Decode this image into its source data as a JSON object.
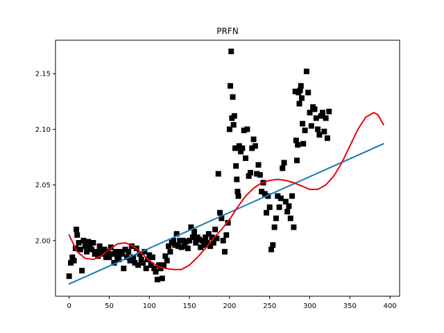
{
  "chart_data": {
    "type": "scatter",
    "title": "PRFN",
    "xlabel": "",
    "ylabel": "",
    "xlim": [
      -17,
      412
    ],
    "ylim": [
      1.95,
      2.18
    ],
    "xticks": [
      0,
      50,
      100,
      150,
      200,
      250,
      300,
      350,
      400
    ],
    "yticks": [
      2.0,
      2.05,
      2.1,
      2.15
    ],
    "xtick_labels": [
      "0",
      "50",
      "100",
      "150",
      "200",
      "250",
      "300",
      "350",
      "400"
    ],
    "ytick_labels": [
      "2.00",
      "2.05",
      "2.10",
      "2.15"
    ],
    "grid": false,
    "legend": "none",
    "series": [
      {
        "kind": "scatter",
        "marker": "square",
        "color": "#000000",
        "points": [
          [
            0,
            1.968
          ],
          [
            2,
            1.98
          ],
          [
            4,
            1.985
          ],
          [
            6,
            1.982
          ],
          [
            8,
            1.993
          ],
          [
            9,
            2.01
          ],
          [
            10,
            2.005
          ],
          [
            12,
            1.998
          ],
          [
            14,
            1.992
          ],
          [
            16,
            1.973
          ],
          [
            18,
            2.0
          ],
          [
            20,
            1.995
          ],
          [
            22,
            1.99
          ],
          [
            24,
            1.999
          ],
          [
            26,
            1.994
          ],
          [
            28,
            1.992
          ],
          [
            30,
            1.998
          ],
          [
            32,
            1.988
          ],
          [
            34,
            1.99
          ],
          [
            36,
            1.986
          ],
          [
            38,
            1.995
          ],
          [
            40,
            1.99
          ],
          [
            42,
            1.988
          ],
          [
            44,
            1.992
          ],
          [
            46,
            1.985
          ],
          [
            48,
            1.99
          ],
          [
            50,
            1.985
          ],
          [
            52,
            1.994
          ],
          [
            54,
            1.988
          ],
          [
            56,
            1.98
          ],
          [
            58,
            1.99
          ],
          [
            60,
            1.985
          ],
          [
            62,
            1.983
          ],
          [
            64,
            1.99
          ],
          [
            66,
            1.988
          ],
          [
            68,
            1.975
          ],
          [
            70,
            1.992
          ],
          [
            72,
            1.985
          ],
          [
            74,
            1.99
          ],
          [
            76,
            1.982
          ],
          [
            78,
            1.995
          ],
          [
            80,
            1.985
          ],
          [
            82,
            1.98
          ],
          [
            84,
            1.993
          ],
          [
            86,
            1.978
          ],
          [
            88,
            1.988
          ],
          [
            90,
            1.983
          ],
          [
            92,
            1.98
          ],
          [
            94,
            1.99
          ],
          [
            96,
            1.975
          ],
          [
            98,
            1.983
          ],
          [
            100,
            1.987
          ],
          [
            102,
            1.978
          ],
          [
            104,
            1.985
          ],
          [
            106,
            1.975
          ],
          [
            108,
            1.972
          ],
          [
            110,
            1.965
          ],
          [
            112,
            1.978
          ],
          [
            114,
            1.975
          ],
          [
            116,
            1.966
          ],
          [
            118,
            1.978
          ],
          [
            120,
            1.986
          ],
          [
            122,
            1.982
          ],
          [
            124,
            1.995
          ],
          [
            126,
            1.99
          ],
          [
            128,
            1.998
          ],
          [
            130,
            2.0
          ],
          [
            132,
            1.996
          ],
          [
            134,
            2.006
          ],
          [
            136,
            1.995
          ],
          [
            138,
            2.0
          ],
          [
            140,
            1.994
          ],
          [
            142,
            2.0
          ],
          [
            144,
            1.995
          ],
          [
            146,
            1.999
          ],
          [
            148,
            1.993
          ],
          [
            150,
            2.0
          ],
          [
            152,
            2.012
          ],
          [
            154,
            2.003
          ],
          [
            156,
            2.008
          ],
          [
            158,
            1.998
          ],
          [
            160,
            2.003
          ],
          [
            162,
            2.001
          ],
          [
            164,
            1.994
          ],
          [
            166,
            2.0
          ],
          [
            168,
            1.996
          ],
          [
            170,
            2.003
          ],
          [
            172,
            1.998
          ],
          [
            174,
            2.006
          ],
          [
            176,
            1.995
          ],
          [
            178,
            2.003
          ],
          [
            180,
            1.998
          ],
          [
            182,
            2.01
          ],
          [
            184,
            2.002
          ],
          [
            186,
            2.06
          ],
          [
            188,
            2.025
          ],
          [
            190,
            2.02
          ],
          [
            192,
            2.0
          ],
          [
            194,
            1.99
          ],
          [
            196,
            2.005
          ],
          [
            198,
            2.016
          ],
          [
            200,
            2.1
          ],
          [
            201,
            2.139
          ],
          [
            202,
            2.17
          ],
          [
            203,
            2.11
          ],
          [
            204,
            2.129
          ],
          [
            205,
            2.104
          ],
          [
            206,
            2.112
          ],
          [
            207,
            2.083
          ],
          [
            208,
            2.067
          ],
          [
            209,
            2.055
          ],
          [
            210,
            2.044
          ],
          [
            211,
            2.04
          ],
          [
            212,
            2.085
          ],
          [
            214,
            2.08
          ],
          [
            216,
            2.083
          ],
          [
            218,
            2.099
          ],
          [
            220,
            2.074
          ],
          [
            222,
            2.1
          ],
          [
            224,
            2.058
          ],
          [
            226,
            2.061
          ],
          [
            228,
            2.083
          ],
          [
            230,
            2.091
          ],
          [
            232,
            2.085
          ],
          [
            234,
            2.06
          ],
          [
            236,
            2.068
          ],
          [
            238,
            2.059
          ],
          [
            240,
            2.044
          ],
          [
            242,
            2.052
          ],
          [
            244,
            2.042
          ],
          [
            246,
            2.025
          ],
          [
            248,
            2.04
          ],
          [
            250,
            2.03
          ],
          [
            252,
            1.992
          ],
          [
            254,
            1.996
          ],
          [
            256,
            2.012
          ],
          [
            258,
            2.02
          ],
          [
            260,
            2.04
          ],
          [
            262,
            2.03
          ],
          [
            264,
            2.038
          ],
          [
            266,
            2.065
          ],
          [
            268,
            2.07
          ],
          [
            270,
            2.035
          ],
          [
            272,
            2.026
          ],
          [
            274,
            2.031
          ],
          [
            276,
            2.02
          ],
          [
            278,
            2.04
          ],
          [
            280,
            2.012
          ],
          [
            282,
            2.134
          ],
          [
            283,
            2.09
          ],
          [
            284,
            2.072
          ],
          [
            285,
            2.086
          ],
          [
            286,
            2.133
          ],
          [
            287,
            2.123
          ],
          [
            288,
            2.135
          ],
          [
            289,
            2.139
          ],
          [
            290,
            2.128
          ],
          [
            291,
            2.105
          ],
          [
            292,
            2.087
          ],
          [
            294,
            2.099
          ],
          [
            296,
            2.152
          ],
          [
            298,
            2.133
          ],
          [
            300,
            2.115
          ],
          [
            302,
            2.103
          ],
          [
            304,
            2.12
          ],
          [
            306,
            2.118
          ],
          [
            308,
            2.11
          ],
          [
            310,
            2.1
          ],
          [
            312,
            2.095
          ],
          [
            314,
            2.112
          ],
          [
            316,
            2.115
          ],
          [
            318,
            2.098
          ],
          [
            320,
            2.11
          ],
          [
            322,
            2.092
          ],
          [
            324,
            2.116
          ]
        ]
      },
      {
        "kind": "line",
        "color": "#1f77b4",
        "x": [
          0,
          392
        ],
        "y": [
          1.961,
          2.087
        ]
      },
      {
        "kind": "line",
        "color": "#e8000b",
        "x": [
          0,
          10,
          20,
          30,
          40,
          50,
          60,
          70,
          80,
          90,
          100,
          110,
          120,
          130,
          140,
          150,
          160,
          170,
          180,
          190,
          200,
          210,
          220,
          230,
          240,
          250,
          260,
          270,
          280,
          290,
          300,
          310,
          320,
          330,
          340,
          350,
          360,
          370,
          380,
          385,
          392
        ],
        "y": [
          2.005,
          1.99,
          1.984,
          1.983,
          1.986,
          1.992,
          1.997,
          1.998,
          1.995,
          1.989,
          1.982,
          1.977,
          1.975,
          1.974,
          1.974,
          1.978,
          1.985,
          1.993,
          2.002,
          2.01,
          2.019,
          2.03,
          2.04,
          2.047,
          2.052,
          2.054,
          2.055,
          2.054,
          2.052,
          2.049,
          2.046,
          2.046,
          2.05,
          2.058,
          2.07,
          2.085,
          2.1,
          2.111,
          2.115,
          2.113,
          2.104
        ]
      }
    ]
  }
}
